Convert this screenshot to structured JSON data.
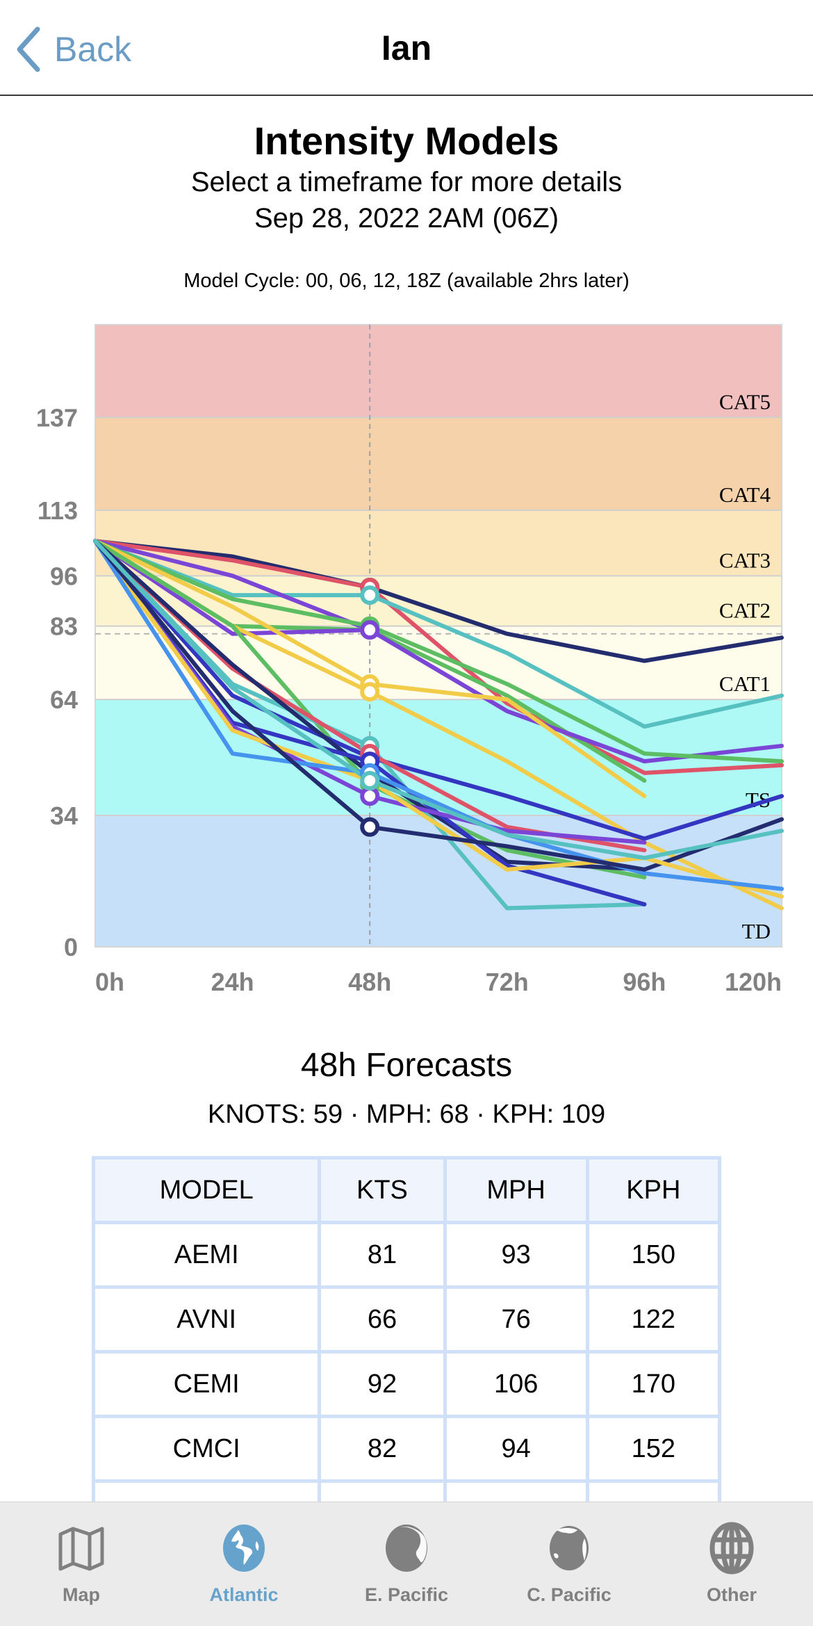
{
  "nav": {
    "back_label": "Back",
    "title": "Ian"
  },
  "header": {
    "title": "Intensity Models",
    "subtitle": "Select a timeframe for more details",
    "date": "Sep 28, 2022 2AM (06Z)",
    "cycle": "Model Cycle: 00, 06, 12, 18Z (available 2hrs later)"
  },
  "chart_data": {
    "type": "line",
    "title": "Intensity Models",
    "xlabel": "",
    "ylabel": "",
    "x": [
      "0h",
      "24h",
      "48h",
      "72h",
      "96h",
      "120h"
    ],
    "x_hours": [
      0,
      24,
      48,
      72,
      96,
      120
    ],
    "ylim": [
      0,
      161
    ],
    "y_ticks": [
      0,
      34,
      64,
      83,
      96,
      113,
      137
    ],
    "selected_x": "48h",
    "reference_line": 81,
    "grid": false,
    "bands": [
      {
        "label": "TD",
        "from": 0,
        "to": 34,
        "color": "#c6e0fa"
      },
      {
        "label": "TS",
        "from": 34,
        "to": 64,
        "color": "#aef8f5"
      },
      {
        "label": "CAT1",
        "from": 64,
        "to": 83,
        "color": "#fefdec"
      },
      {
        "label": "CAT2",
        "from": 83,
        "to": 96,
        "color": "#fcf3cf"
      },
      {
        "label": "CAT3",
        "from": 96,
        "to": 113,
        "color": "#fbe6bb"
      },
      {
        "label": "CAT4",
        "from": 113,
        "to": 137,
        "color": "#f6d2aa"
      },
      {
        "label": "CAT5",
        "from": 137,
        "to": 161,
        "color": "#f2bfbf"
      }
    ],
    "series": [
      {
        "color": "#222c6e",
        "values": [
          105,
          101,
          93,
          81,
          74,
          80
        ]
      },
      {
        "color": "#de5368",
        "values": [
          105,
          100,
          93,
          63,
          45,
          47
        ]
      },
      {
        "color": "#57c0c0",
        "values": [
          105,
          91,
          91,
          76,
          57,
          65
        ]
      },
      {
        "color": "#7b45d6",
        "values": [
          105,
          96,
          82,
          61,
          48,
          52
        ]
      },
      {
        "color": "#5dbd63",
        "values": [
          105,
          90,
          83,
          68,
          50,
          48
        ]
      },
      {
        "color": "#5dbd63",
        "values": [
          105,
          83,
          82,
          65,
          43,
          null
        ]
      },
      {
        "color": "#7b45d6",
        "values": [
          105,
          81,
          82,
          61,
          48,
          null
        ]
      },
      {
        "color": "#f2cb49",
        "values": [
          105,
          88,
          68,
          64,
          39,
          null
        ]
      },
      {
        "color": "#f2cb49",
        "values": [
          105,
          83,
          66,
          48,
          27,
          10
        ]
      },
      {
        "color": "#5dbd63",
        "values": [
          105,
          83,
          42,
          25,
          18,
          null
        ]
      },
      {
        "color": "#57c0c0",
        "values": [
          105,
          68,
          52,
          10,
          11,
          null
        ]
      },
      {
        "color": "#3436c2",
        "values": [
          105,
          65,
          49,
          39,
          28,
          39
        ]
      },
      {
        "color": "#de5368",
        "values": [
          105,
          72,
          50,
          31,
          25,
          null
        ]
      },
      {
        "color": "#222c6e",
        "values": [
          105,
          73,
          45,
          22,
          20,
          33
        ]
      },
      {
        "color": "#3436c2",
        "values": [
          105,
          58,
          48,
          21,
          11,
          null
        ]
      },
      {
        "color": "#7b45d6",
        "values": [
          105,
          57,
          39,
          30,
          27,
          null
        ]
      },
      {
        "color": "#f2cb49",
        "values": [
          105,
          56,
          43,
          20,
          23,
          13
        ]
      },
      {
        "color": "#4593ee",
        "values": [
          105,
          50,
          45,
          29,
          19,
          15
        ]
      },
      {
        "color": "#222c6e",
        "values": [
          105,
          61,
          31,
          26,
          20,
          null
        ]
      },
      {
        "color": "#57c0c0",
        "values": [
          105,
          67,
          43,
          29,
          23,
          30
        ]
      }
    ]
  },
  "forecast": {
    "title": "48h Forecasts",
    "summary": "KNOTS: 59 · MPH: 68 · KPH: 109",
    "columns": [
      "MODEL",
      "KTS",
      "MPH",
      "KPH"
    ],
    "rows": [
      [
        "AEMI",
        "81",
        "93",
        "150"
      ],
      [
        "AVNI",
        "66",
        "76",
        "122"
      ],
      [
        "CEMI",
        "92",
        "106",
        "170"
      ],
      [
        "CMCI",
        "82",
        "94",
        "152"
      ],
      [
        "",
        "",
        "",
        ""
      ]
    ]
  },
  "tabs": [
    {
      "label": "Map",
      "icon": "map-icon",
      "active": false
    },
    {
      "label": "Atlantic",
      "icon": "globe-atlantic-icon",
      "active": true
    },
    {
      "label": "E. Pacific",
      "icon": "globe-americas-icon",
      "active": false
    },
    {
      "label": "C. Pacific",
      "icon": "globe-pacific-icon",
      "active": false
    },
    {
      "label": "Other",
      "icon": "globe-grid-icon",
      "active": false
    }
  ],
  "colors": {
    "accent": "#6a9cc6",
    "tab_active": "#65a3cc",
    "tab_inactive": "#808080"
  }
}
